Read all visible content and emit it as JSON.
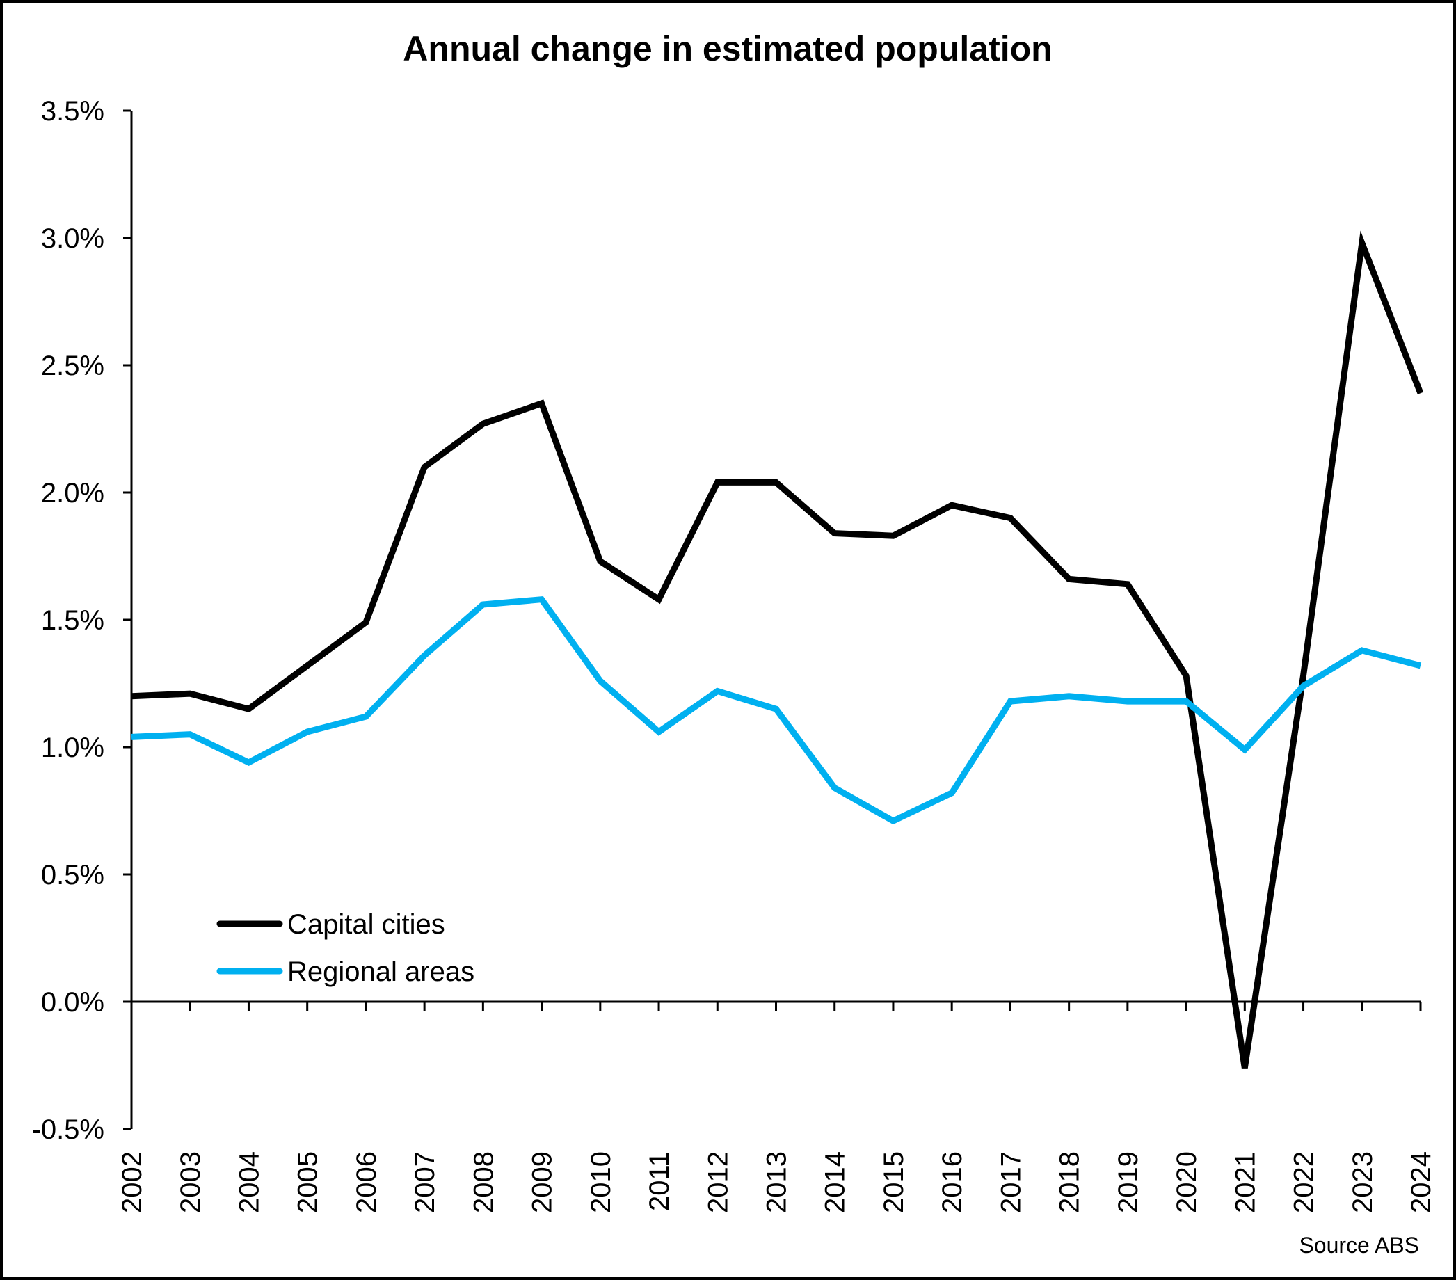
{
  "chart_data": {
    "type": "line",
    "title": "Annual change in estimated population",
    "xlabel": "",
    "ylabel": "",
    "source": "Source ABS",
    "ylim": [
      -0.5,
      3.5
    ],
    "yticks": [
      -0.5,
      0.0,
      0.5,
      1.0,
      1.5,
      2.0,
      2.5,
      3.0,
      3.5
    ],
    "ytick_labels": [
      "-0.5%",
      "0.0%",
      "0.5%",
      "1.0%",
      "1.5%",
      "2.0%",
      "2.5%",
      "3.0%",
      "3.5%"
    ],
    "y_unit": "%",
    "grid": false,
    "legend_position": "bottom-left",
    "x": [
      "2002",
      "2003",
      "2004",
      "2005",
      "2006",
      "2007",
      "2008",
      "2009",
      "2010",
      "2011",
      "2012",
      "2013",
      "2014",
      "2015",
      "2016",
      "2017",
      "2018",
      "2019",
      "2020",
      "2021",
      "2022",
      "2023",
      "2024"
    ],
    "series": [
      {
        "name": "Capital cities",
        "color": "#000000",
        "values": [
          1.2,
          1.21,
          1.15,
          1.32,
          1.49,
          2.1,
          2.27,
          2.35,
          1.73,
          1.58,
          2.04,
          2.04,
          1.84,
          1.83,
          1.95,
          1.9,
          1.66,
          1.64,
          1.28,
          -0.26,
          1.28,
          2.98,
          2.39
        ]
      },
      {
        "name": "Regional areas",
        "color": "#00B0F0",
        "values": [
          1.04,
          1.05,
          0.94,
          1.06,
          1.12,
          1.36,
          1.56,
          1.58,
          1.26,
          1.06,
          1.22,
          1.15,
          0.84,
          0.71,
          0.82,
          1.18,
          1.2,
          1.18,
          1.18,
          0.99,
          1.24,
          1.38,
          1.32
        ]
      }
    ]
  }
}
